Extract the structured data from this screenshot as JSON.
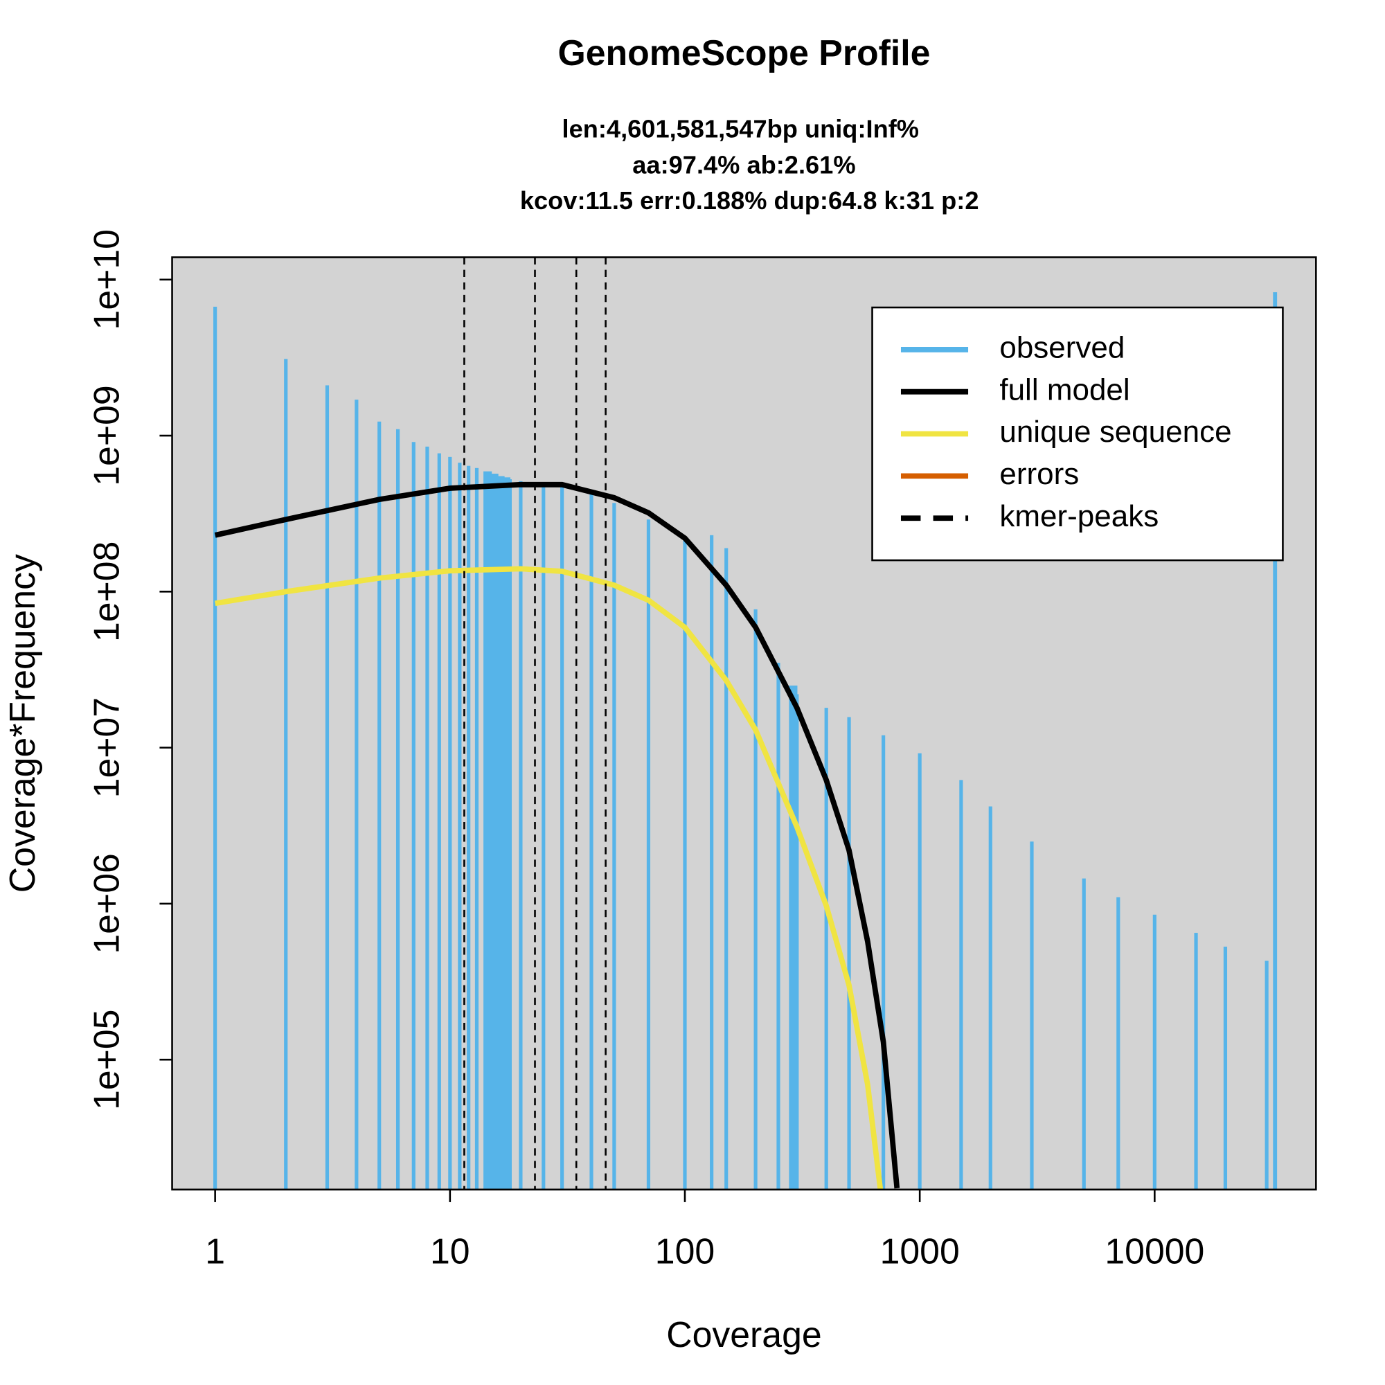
{
  "chart_data": {
    "type": "line",
    "title": "GenomeScope Profile",
    "subtitle": [
      "len:4,601,581,547bp uniq:Inf%",
      "aa:97.4% ab:2.61%",
      "kcov:11.5 err:0.188%  dup:64.8  k:31 p:2"
    ],
    "x_label": "Coverage",
    "y_label": "Coverage*Frequency",
    "x_log": true,
    "y_log": true,
    "xlim": [
      0.656,
      48630
    ],
    "ylim": [
      14700,
      13900000000
    ],
    "xticks": [
      1,
      10,
      100,
      1000,
      10000
    ],
    "yticks": [
      {
        "value": 100000,
        "label": "1e+05"
      },
      {
        "value": 1000000,
        "label": "1e+06"
      },
      {
        "value": 10000000,
        "label": "1e+07"
      },
      {
        "value": 100000000,
        "label": "1e+08"
      },
      {
        "value": 1000000000,
        "label": "1e+09"
      },
      {
        "value": 10000000000,
        "label": "1e+10"
      }
    ],
    "background": "#d3d3d3",
    "legend": "topright",
    "series": [
      {
        "name": "observed",
        "type": "bar",
        "color": "#56b4e9",
        "x": [
          1,
          2,
          3,
          4,
          5,
          6,
          7,
          8,
          9,
          10,
          11,
          12,
          13,
          14,
          15,
          16,
          17,
          18,
          20,
          25,
          30,
          40,
          50,
          70,
          100,
          130,
          150,
          200,
          250,
          280,
          300,
          400,
          500,
          700,
          1000,
          1500,
          2000,
          3000,
          5000,
          7000,
          10000,
          15000,
          20000,
          30000,
          32200
        ],
        "values": [
          6700000000,
          3100000000,
          2100000000,
          1700000000,
          1230000000,
          1100000000,
          910000000,
          850000000,
          770000000,
          730000000,
          670000000,
          640000000,
          620000000,
          590000000,
          570000000,
          550000000,
          540000000,
          525000000,
          510000000,
          490000000,
          470000000,
          430000000,
          370000000,
          290000000,
          220000000,
          230000000,
          190000000,
          77000000,
          35000000,
          25000000,
          22000000,
          18000000,
          15700000,
          12000000,
          9200000,
          6200000,
          4200000,
          2500000,
          1450000,
          1100000,
          850000,
          650000,
          530000,
          430000,
          8300000000
        ]
      },
      {
        "name": "full model",
        "type": "line",
        "color": "#000000",
        "x": [
          1,
          2,
          5,
          10,
          20,
          30,
          50,
          70,
          100,
          150,
          200,
          300,
          400,
          500,
          600,
          700,
          800
        ],
        "values": [
          230000000,
          290000000,
          390000000,
          460000000,
          485000000,
          485000000,
          400000000,
          320000000,
          220000000,
          110000000,
          59000000,
          18000000,
          6200000,
          2200000,
          570000,
          130000,
          15000
        ]
      },
      {
        "name": "unique sequence",
        "type": "line",
        "color": "#f0e442",
        "x": [
          1,
          2,
          5,
          10,
          20,
          30,
          50,
          70,
          100,
          150,
          200,
          300,
          400,
          500,
          600,
          680
        ],
        "values": [
          84000000,
          100000000,
          122000000,
          136000000,
          140000000,
          135000000,
          110000000,
          88000000,
          59000000,
          27000000,
          13000000,
          3100000,
          970000,
          300000,
          69000,
          14700
        ]
      },
      {
        "name": "errors",
        "type": "line",
        "color": "#d55e00"
      },
      {
        "name": "kmer-peaks",
        "type": "vline",
        "color": "#000000",
        "x": [
          11.5,
          23,
          34.5,
          46
        ]
      }
    ]
  }
}
